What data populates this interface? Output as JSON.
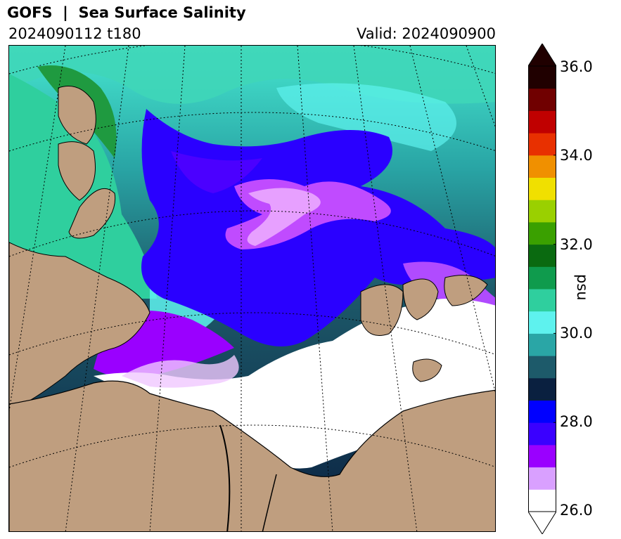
{
  "header": {
    "title": "GOFS  |  Sea Surface Salinity",
    "run_label": "2024090112 t180",
    "valid_label": "Valid: 2024090900"
  },
  "map": {
    "land_color": "#bf9e7f",
    "ice_color": "#ffffff",
    "graticule_style": "dotted"
  },
  "colorbar": {
    "unit": "psu",
    "min": 26.0,
    "max": 36.0,
    "extend": "both",
    "ticks": [
      "26.0",
      "28.0",
      "30.0",
      "32.0",
      "34.0",
      "36.0"
    ],
    "colors": [
      "#ffffff",
      "#d9a0ff",
      "#9a00ff",
      "#3a00ff",
      "#0000ff",
      "#0a2040",
      "#1d5a6a",
      "#2aa6a6",
      "#5ef2ee",
      "#2fcf9e",
      "#0f9b4d",
      "#0a6a10",
      "#3aa000",
      "#9ad000",
      "#f0e000",
      "#f09000",
      "#e83000",
      "#c00000",
      "#700000",
      "#200000"
    ]
  }
}
